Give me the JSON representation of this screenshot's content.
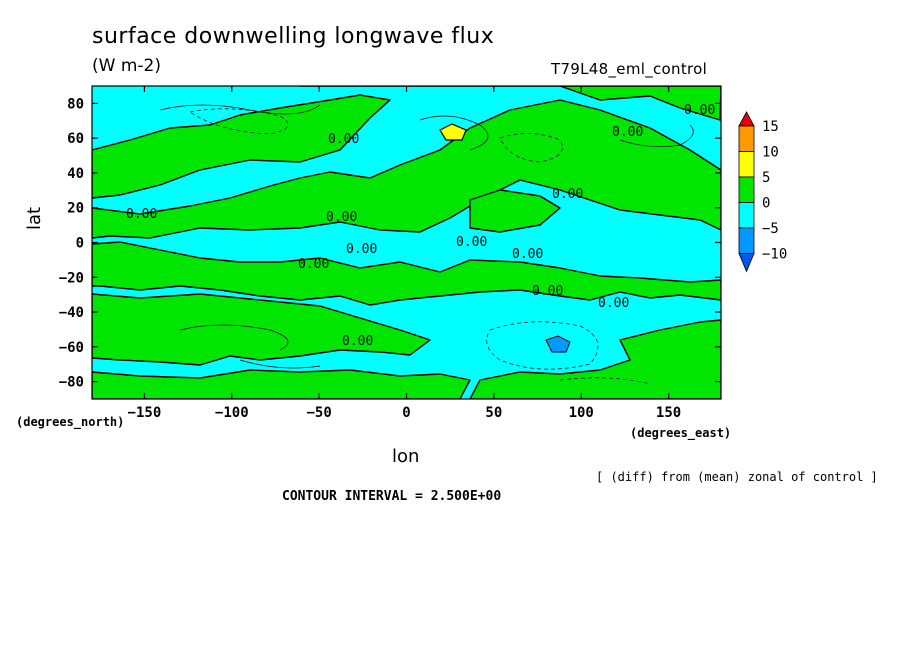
{
  "header": {
    "title": "surface downwelling longwave flux",
    "units": "(W m-2)",
    "experiment": "T79L48_eml_control"
  },
  "axes_units": {
    "lat": "(degrees_north)",
    "lon": "(degrees_east)"
  },
  "footer": {
    "note": "[ (diff) from (mean) zonal of control ]",
    "contour_interval": "CONTOUR INTERVAL = 2.500E+00"
  },
  "chart_data": {
    "type": "heatmap",
    "title": "surface downwelling longwave flux",
    "subtitle": "(W m-2)",
    "xlabel": "lon",
    "ylabel": "lat",
    "xlim": [
      -180,
      180
    ],
    "ylim": [
      -90,
      90
    ],
    "x_ticks": [
      -150,
      -100,
      -50,
      0,
      50,
      100,
      150
    ],
    "y_ticks": [
      -80,
      -60,
      -40,
      -20,
      0,
      20,
      40,
      60,
      80
    ],
    "contour_label": "0.00",
    "contour_interval": 2.5,
    "colorbar": {
      "ticks": [
        15,
        10,
        5,
        0,
        -5,
        -10
      ],
      "bins": [
        {
          "range": ">15",
          "color": "#e8000b"
        },
        {
          "range": "10 to 15",
          "color": "#ff9900"
        },
        {
          "range": "5 to 10",
          "color": "#ffff00"
        },
        {
          "range": "0 to 5",
          "color": "#00e600"
        },
        {
          "range": "-5 to 0",
          "color": "#00ffff"
        },
        {
          "range": "-10 to -5",
          "color": "#0099ff"
        },
        {
          "range": "<-10",
          "color": "#0055ee"
        }
      ]
    }
  }
}
